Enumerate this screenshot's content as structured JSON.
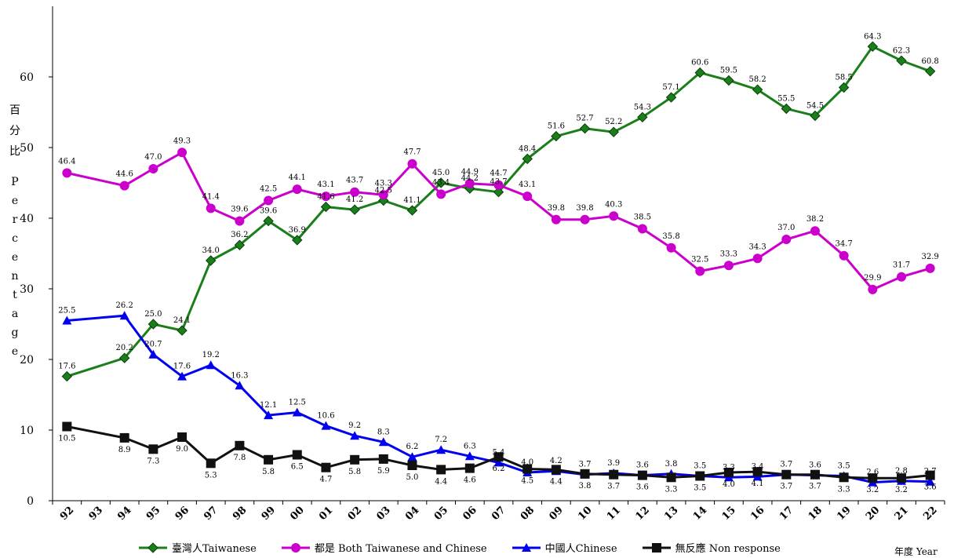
{
  "chart_data": {
    "type": "line",
    "xlabel": "年度 Year",
    "ylabel_zh": "百分比",
    "ylabel_en": "Percentage",
    "ylim": [
      0,
      70
    ],
    "yticks": [
      0,
      10,
      20,
      30,
      40,
      50,
      60
    ],
    "categories": [
      "92",
      "93",
      "94",
      "95",
      "96",
      "97",
      "98",
      "99",
      "00",
      "01",
      "02",
      "03",
      "04",
      "05",
      "06",
      "07",
      "08",
      "09",
      "10",
      "11",
      "12",
      "13",
      "14",
      "15",
      "16",
      "17",
      "18",
      "19",
      "20",
      "21",
      "22"
    ],
    "series": [
      {
        "name": "臺灣人Taiwanese",
        "color": "#1a7f1a",
        "marker": "diamond",
        "values": [
          17.6,
          null,
          20.2,
          25.0,
          24.1,
          34.0,
          36.2,
          39.6,
          36.9,
          41.6,
          41.2,
          42.5,
          41.1,
          45.0,
          44.2,
          43.7,
          48.4,
          51.6,
          52.7,
          52.2,
          54.3,
          57.1,
          60.6,
          59.5,
          58.2,
          55.5,
          54.5,
          58.5,
          64.3,
          62.3,
          60.8
        ]
      },
      {
        "name": "都是 Both Taiwanese and Chinese",
        "color": "#cc00cc",
        "marker": "circle",
        "values": [
          46.4,
          null,
          44.6,
          47.0,
          49.3,
          41.4,
          39.6,
          42.5,
          44.1,
          43.1,
          43.7,
          43.3,
          47.7,
          43.4,
          44.9,
          44.7,
          43.1,
          39.8,
          39.8,
          40.3,
          38.5,
          35.8,
          32.5,
          33.3,
          34.3,
          37.0,
          38.2,
          34.7,
          29.9,
          31.7,
          32.9
        ]
      },
      {
        "name": "中國人Chinese",
        "color": "#0000ee",
        "marker": "triangle",
        "values": [
          25.5,
          null,
          26.2,
          20.7,
          17.6,
          19.2,
          16.3,
          12.1,
          12.5,
          10.6,
          9.2,
          8.3,
          6.2,
          7.2,
          6.3,
          5.4,
          4.0,
          4.2,
          3.7,
          3.9,
          3.6,
          3.8,
          3.5,
          3.3,
          3.4,
          3.7,
          3.6,
          3.5,
          2.6,
          2.8,
          2.7
        ]
      },
      {
        "name": "無反應 Non response",
        "color": "#111111",
        "marker": "square",
        "values": [
          10.5,
          null,
          8.9,
          7.3,
          9.0,
          5.3,
          7.8,
          5.8,
          6.5,
          4.7,
          5.8,
          5.9,
          5.0,
          4.4,
          4.6,
          6.2,
          4.5,
          4.4,
          3.8,
          3.7,
          3.6,
          3.3,
          3.5,
          4.0,
          4.1,
          3.7,
          3.7,
          3.3,
          3.2,
          3.2,
          3.6
        ]
      }
    ],
    "grid": false,
    "legend_position": "bottom"
  }
}
